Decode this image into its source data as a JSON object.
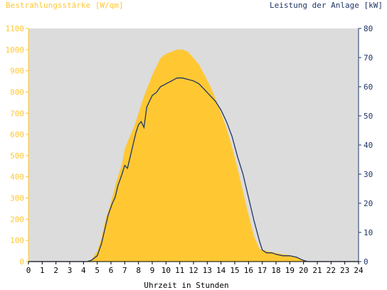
{
  "chart_data": {
    "type": "area",
    "title_left": "Bestrahlungsstärke [W/qm]",
    "title_right": "Leistung der Anlage [kW]",
    "xlabel": "Uhrzeit in Stunden",
    "xlim": [
      0,
      24
    ],
    "ylim_left": [
      0,
      1100
    ],
    "ylim_right": [
      0,
      80
    ],
    "x_ticks": [
      "0",
      "1",
      "2",
      "3",
      "4",
      "5",
      "6",
      "7",
      "8",
      "9",
      "10",
      "11",
      "12",
      "13",
      "14",
      "15",
      "16",
      "17",
      "18",
      "19",
      "20",
      "21",
      "22",
      "23",
      "24"
    ],
    "y_left_ticks": [
      "0",
      "100",
      "200",
      "300",
      "400",
      "500",
      "600",
      "700",
      "800",
      "900",
      "1000",
      "1100"
    ],
    "y_right_ticks": [
      "0",
      "10",
      "20",
      "30",
      "40",
      "50",
      "60",
      "70",
      "80"
    ],
    "grid": false,
    "colors": {
      "plot_bg": "#dcdcdc",
      "irradiance_fill": "#ffc833",
      "power_line": "#1f3566",
      "left_axis": "#ffc833",
      "right_axis": "#1f3566"
    },
    "series": [
      {
        "axis": "left",
        "style": "area",
        "x": [
          0,
          4.3,
          4.6,
          5.0,
          5.3,
          5.6,
          6.0,
          6.4,
          6.8,
          7.0,
          7.3,
          7.7,
          8.0,
          8.4,
          8.7,
          9.0,
          9.3,
          9.6,
          10.0,
          10.4,
          10.8,
          11.2,
          11.6,
          12.0,
          12.4,
          12.8,
          13.2,
          13.6,
          14.0,
          14.4,
          14.8,
          15.2,
          15.6,
          16.0,
          16.4,
          16.8,
          17.0,
          17.3,
          17.7,
          18.0,
          18.5,
          19.0,
          19.5,
          19.8,
          20.0,
          20.3,
          20.5,
          21,
          24
        ],
        "y": [
          0,
          0,
          10,
          50,
          110,
          200,
          280,
          380,
          460,
          530,
          580,
          640,
          700,
          780,
          830,
          880,
          920,
          960,
          980,
          990,
          1000,
          1000,
          990,
          960,
          930,
          880,
          830,
          770,
          700,
          630,
          540,
          440,
          330,
          220,
          120,
          60,
          55,
          50,
          45,
          40,
          35,
          30,
          20,
          10,
          5,
          0,
          0,
          0,
          0
        ]
      },
      {
        "axis": "right",
        "style": "line",
        "x": [
          0,
          4.3,
          4.6,
          5.0,
          5.3,
          5.5,
          5.8,
          6.1,
          6.3,
          6.5,
          6.8,
          7.0,
          7.2,
          7.5,
          7.8,
          8.0,
          8.2,
          8.4,
          8.6,
          8.8,
          9.0,
          9.3,
          9.6,
          10.0,
          10.4,
          10.8,
          11.2,
          11.6,
          12.0,
          12.4,
          12.8,
          13.2,
          13.6,
          14.0,
          14.4,
          14.8,
          15.2,
          15.6,
          16.0,
          16.4,
          16.8,
          17.0,
          17.3,
          17.7,
          18.0,
          18.5,
          19.0,
          19.5,
          19.8,
          20.0,
          20.3,
          20.5,
          21,
          24
        ],
        "y": [
          0,
          0,
          0.5,
          2,
          6,
          10,
          16,
          20,
          22,
          26,
          30,
          33,
          32,
          38,
          44,
          47,
          48,
          46,
          53,
          55,
          57,
          58,
          60,
          61,
          62,
          63,
          63,
          62.5,
          62,
          61,
          59,
          57,
          55,
          52,
          48,
          43,
          36,
          30,
          22,
          14,
          7,
          4,
          3,
          3,
          2.5,
          2,
          2,
          1.5,
          0.8,
          0.4,
          0,
          0,
          0,
          0
        ]
      }
    ]
  }
}
